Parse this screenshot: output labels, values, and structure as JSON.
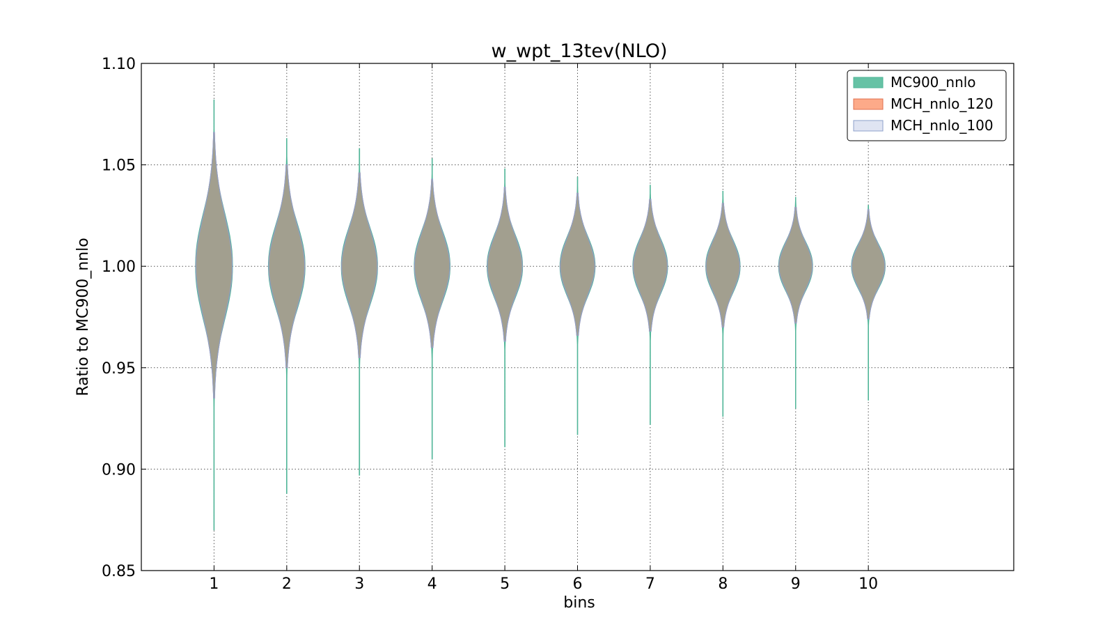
{
  "chart_data": {
    "type": "violin",
    "title": "w_wpt_13tev(NLO)",
    "xlabel": "bins",
    "ylabel": "Ratio to MC900_nnlo",
    "xlim": [
      0,
      12
    ],
    "ylim": [
      0.85,
      1.1
    ],
    "yticks": [
      "0.85",
      "0.90",
      "0.95",
      "1.00",
      "1.05",
      "1.10"
    ],
    "categories": [
      "1",
      "2",
      "3",
      "4",
      "5",
      "6",
      "7",
      "8",
      "9",
      "10"
    ],
    "grid": true,
    "legend_position": "top-right",
    "series": [
      {
        "name": "MC900_nnlo",
        "color": "#66c2a5",
        "edge": "#4fb597",
        "min": [
          0.87,
          0.888,
          0.897,
          0.905,
          0.911,
          0.917,
          0.922,
          0.926,
          0.93,
          0.934
        ],
        "max": [
          1.082,
          1.063,
          1.058,
          1.053,
          1.048,
          1.044,
          1.04,
          1.037,
          1.034,
          1.03
        ],
        "core_low": [
          0.97,
          0.976,
          0.978,
          0.98,
          0.982,
          0.983,
          0.984,
          0.985,
          0.986,
          0.987
        ],
        "core_high": [
          1.03,
          1.024,
          1.022,
          1.02,
          1.018,
          1.017,
          1.016,
          1.015,
          1.014,
          1.013
        ]
      },
      {
        "name": "MCH_nnlo_120",
        "color": "#fc8d62",
        "edge": "#e07050",
        "min": [
          0.935,
          0.95,
          0.955,
          0.96,
          0.963,
          0.966,
          0.968,
          0.97,
          0.972,
          0.974
        ],
        "max": [
          1.066,
          1.05,
          1.046,
          1.043,
          1.039,
          1.036,
          1.033,
          1.031,
          1.029,
          1.028
        ],
        "core_low": [
          0.97,
          0.976,
          0.978,
          0.98,
          0.982,
          0.983,
          0.984,
          0.985,
          0.986,
          0.987
        ],
        "core_high": [
          1.03,
          1.024,
          1.022,
          1.02,
          1.018,
          1.017,
          1.016,
          1.015,
          1.014,
          1.013
        ]
      },
      {
        "name": "MCH_nnlo_100",
        "color": "#dfe4f2",
        "edge": "#8da0cb",
        "min": [
          0.935,
          0.95,
          0.955,
          0.96,
          0.963,
          0.966,
          0.968,
          0.97,
          0.972,
          0.974
        ],
        "max": [
          1.066,
          1.05,
          1.046,
          1.043,
          1.039,
          1.036,
          1.033,
          1.031,
          1.029,
          1.028
        ],
        "core_low": [
          0.97,
          0.976,
          0.978,
          0.98,
          0.982,
          0.983,
          0.984,
          0.985,
          0.986,
          0.987
        ],
        "core_high": [
          1.03,
          1.024,
          1.022,
          1.02,
          1.018,
          1.017,
          1.016,
          1.015,
          1.014,
          1.013
        ]
      }
    ],
    "body_color": "#a29f8f"
  }
}
